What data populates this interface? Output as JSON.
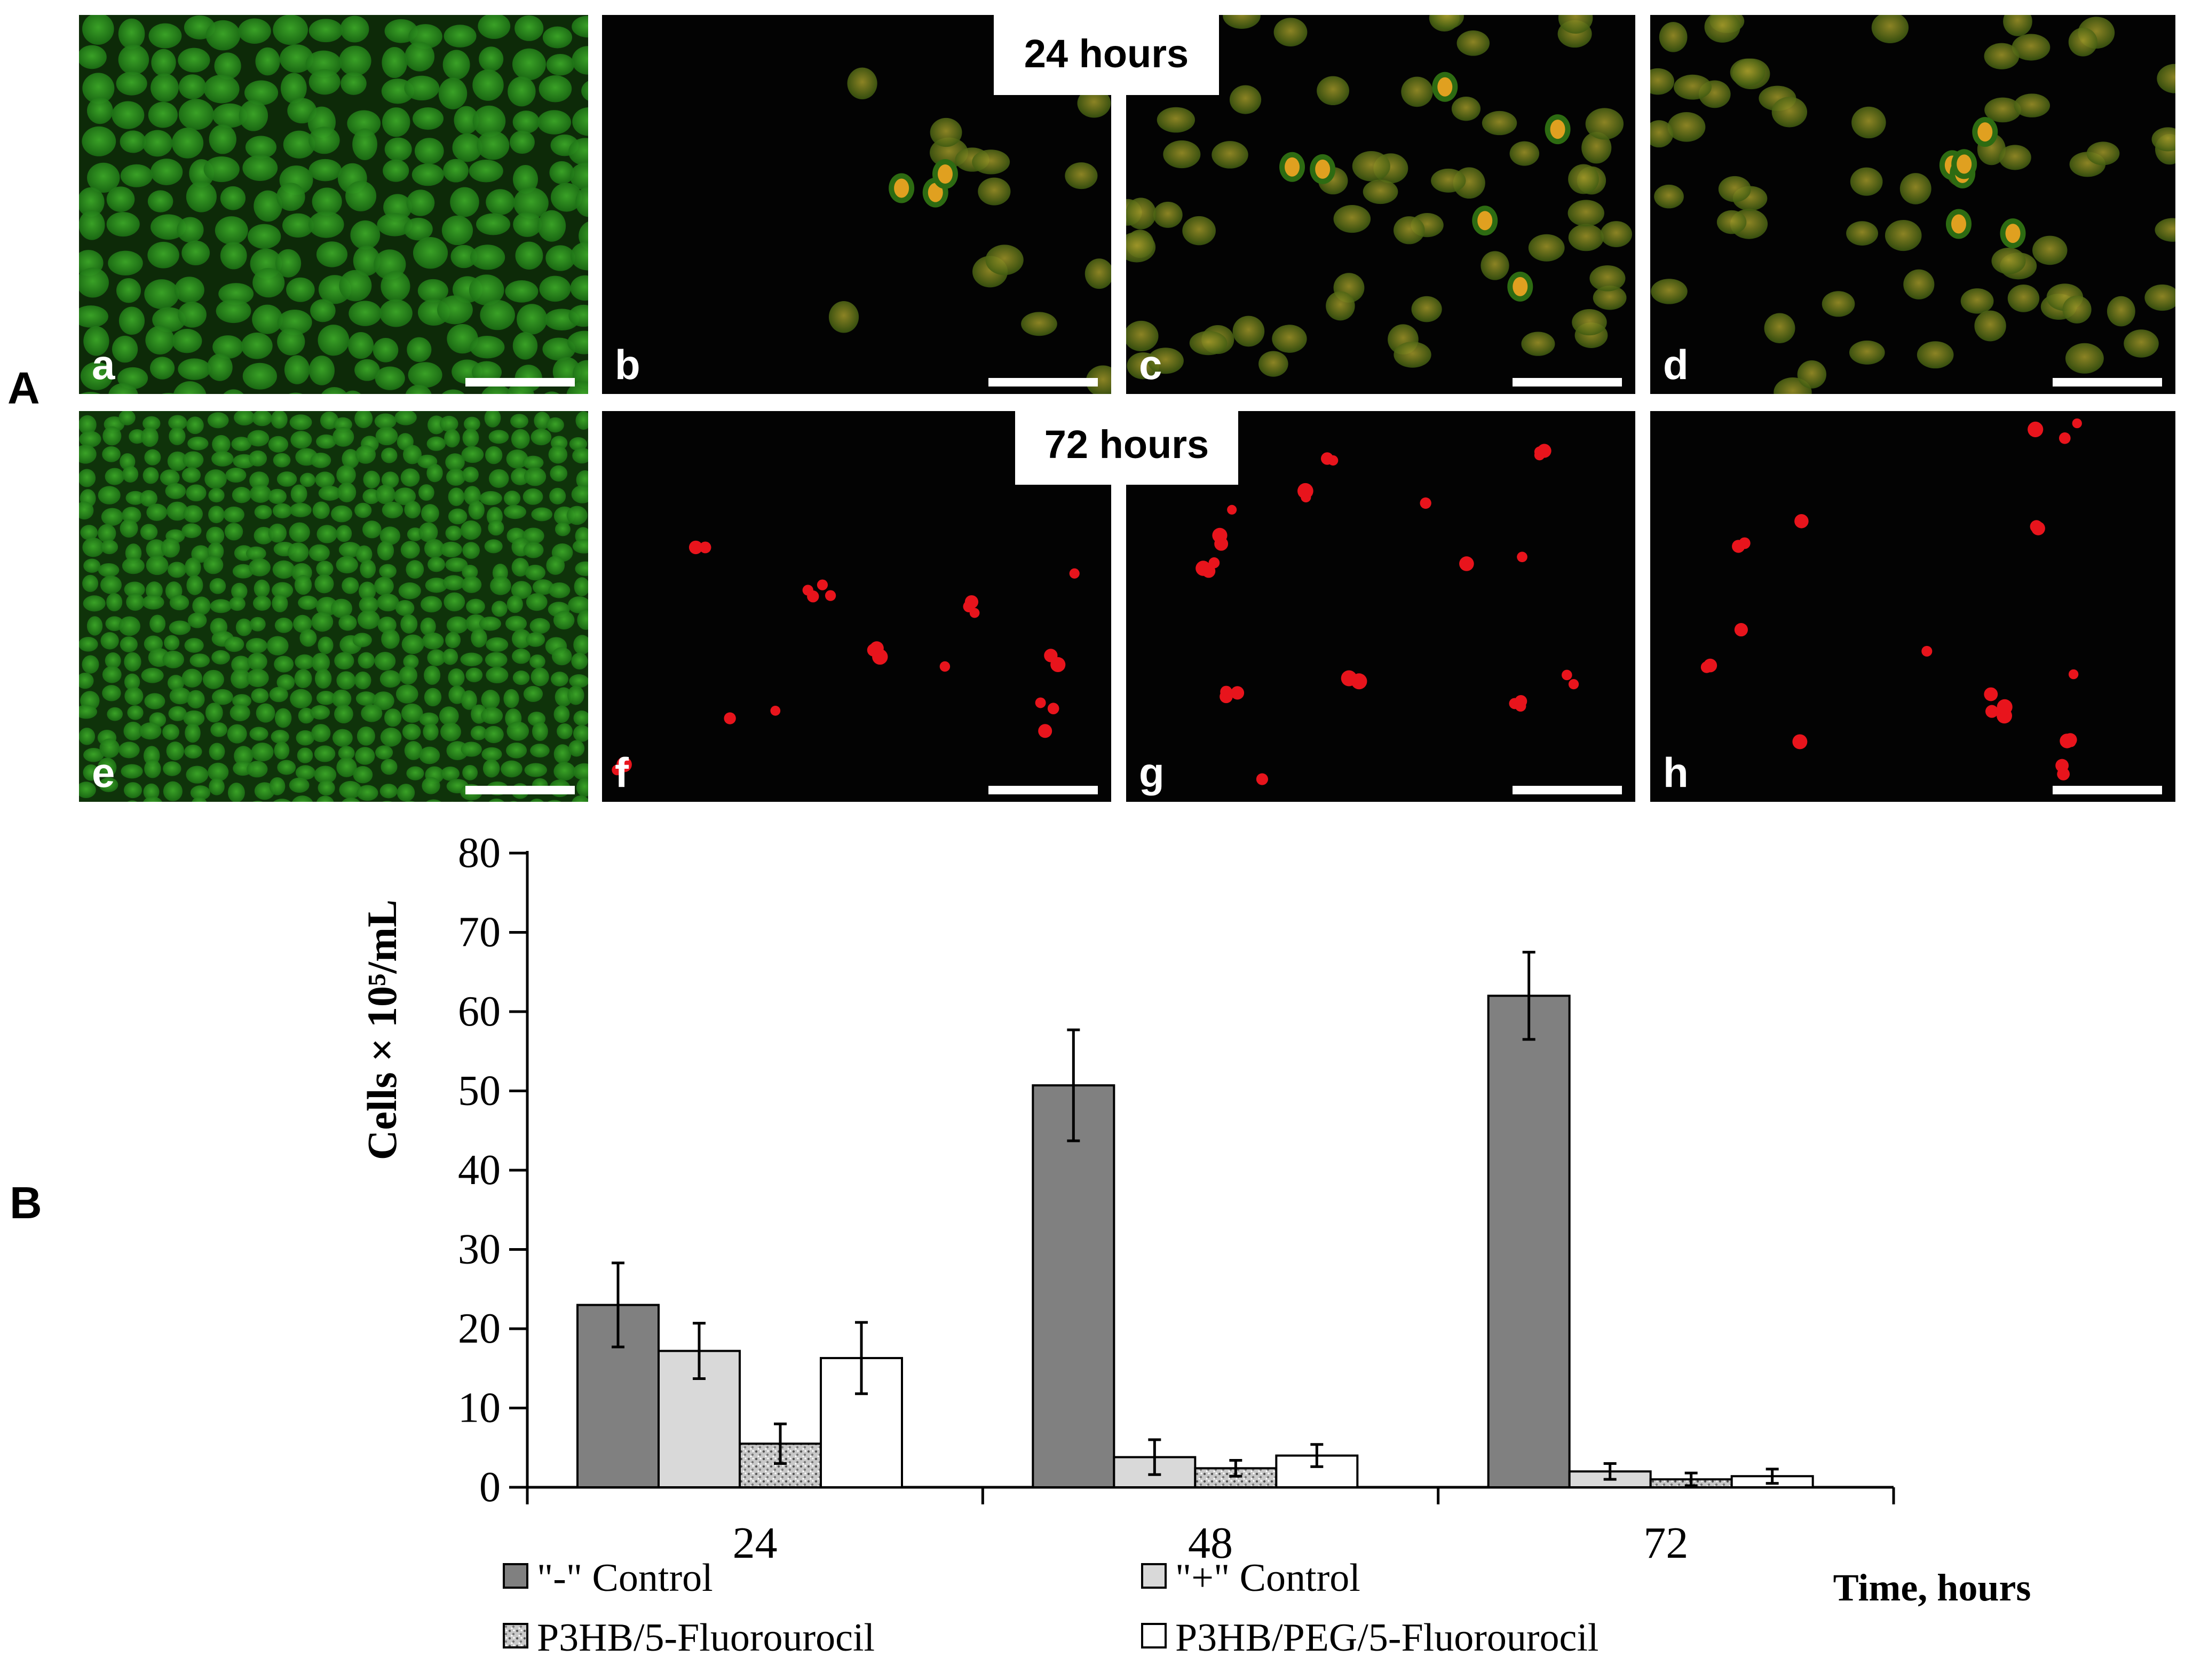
{
  "panel_a": {
    "label": "A",
    "row_labels": [
      "24 hours",
      "72 hours"
    ],
    "tiles": [
      {
        "letter": "a",
        "stain": "green-dense"
      },
      {
        "letter": "b",
        "stain": "green-orange-sparse"
      },
      {
        "letter": "c",
        "stain": "green-orange"
      },
      {
        "letter": "d",
        "stain": "green-orange"
      },
      {
        "letter": "e",
        "stain": "green-very-dense"
      },
      {
        "letter": "f",
        "stain": "red-sparse"
      },
      {
        "letter": "g",
        "stain": "red-sparse"
      },
      {
        "letter": "h",
        "stain": "red-sparse"
      }
    ]
  },
  "panel_b": {
    "label": "B"
  },
  "colors": {
    "neg_control": "#808080",
    "pos_control": "#d9d9d9",
    "p3hb_5fu": "#c8c8c8",
    "p3hb_peg_5fu": "#ffffff",
    "live_stain": "#2f9a22",
    "dying_stain": "#e0a020",
    "dead_stain": "#e8141c"
  },
  "chart_data": {
    "type": "bar",
    "categories": [
      "24",
      "48",
      "72"
    ],
    "ylabel": "Cells × 10⁵/mL",
    "xlabel": "Time, hours",
    "ylim": [
      0,
      80
    ],
    "yticks": [
      0,
      10,
      20,
      30,
      40,
      50,
      60,
      70,
      80
    ],
    "grid": false,
    "legend_position": "bottom",
    "series": [
      {
        "name": "\"-\" Control",
        "values": [
          23,
          50.7,
          62
        ],
        "errors": [
          5.3,
          7,
          5.5
        ],
        "fill": "solid-dark"
      },
      {
        "name": "\"+\" Control",
        "values": [
          17.2,
          3.8,
          2
        ],
        "errors": [
          3.5,
          2.2,
          1
        ],
        "fill": "solid-light"
      },
      {
        "name": "P3HB/5-Fluorourocil",
        "values": [
          5.5,
          2.4,
          1
        ],
        "errors": [
          2.5,
          1,
          0.8
        ],
        "fill": "stipple"
      },
      {
        "name": "P3HB/PEG/5-Fluorourocil",
        "values": [
          16.3,
          4,
          1.4
        ],
        "errors": [
          4.5,
          1.4,
          0.9
        ],
        "fill": "white"
      }
    ]
  }
}
